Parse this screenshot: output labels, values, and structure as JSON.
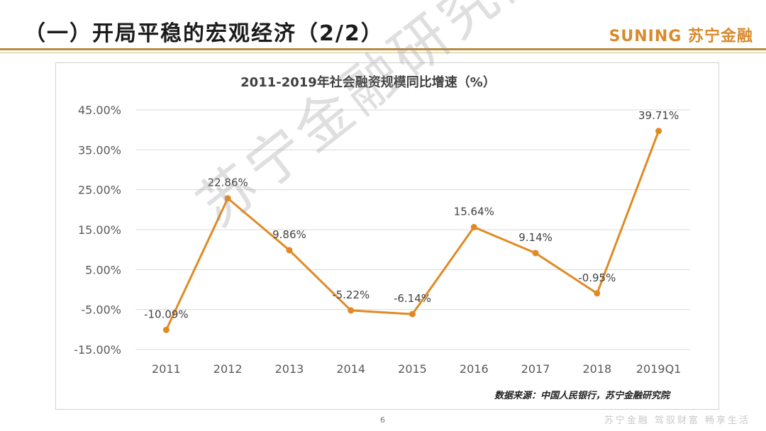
{
  "header": {
    "title": "（一）开局平稳的宏观经济（2/2）",
    "brand": "SUNING 苏宁金融"
  },
  "chart_data": {
    "type": "line",
    "title": "2011-2019年社会融资规模同比增速（%）",
    "categories": [
      "2011",
      "2012",
      "2013",
      "2014",
      "2015",
      "2016",
      "2017",
      "2018",
      "2019Q1"
    ],
    "series": [
      {
        "values": [
          -10.09,
          22.86,
          9.86,
          -5.22,
          -6.14,
          15.64,
          9.14,
          -0.95,
          39.71
        ],
        "labels": [
          "-10.09%",
          "22.86%",
          "9.86%",
          "-5.22%",
          "-6.14%",
          "15.64%",
          "9.14%",
          "-0.95%",
          "39.71%"
        ],
        "color": "#e08a24"
      }
    ],
    "yticks": [
      "45.00%",
      "35.00%",
      "25.00%",
      "15.00%",
      "5.00%",
      "-5.00%",
      "-15.00%"
    ],
    "ylim": [
      -15,
      45
    ],
    "grid": true,
    "legend": "none"
  },
  "footer": {
    "source": "数据来源：中国人民银行，苏宁金融研究院",
    "page": "6",
    "slogan": "苏宁金融 驾驭财富 畅享生活"
  },
  "watermark": "苏宁金融研究院"
}
